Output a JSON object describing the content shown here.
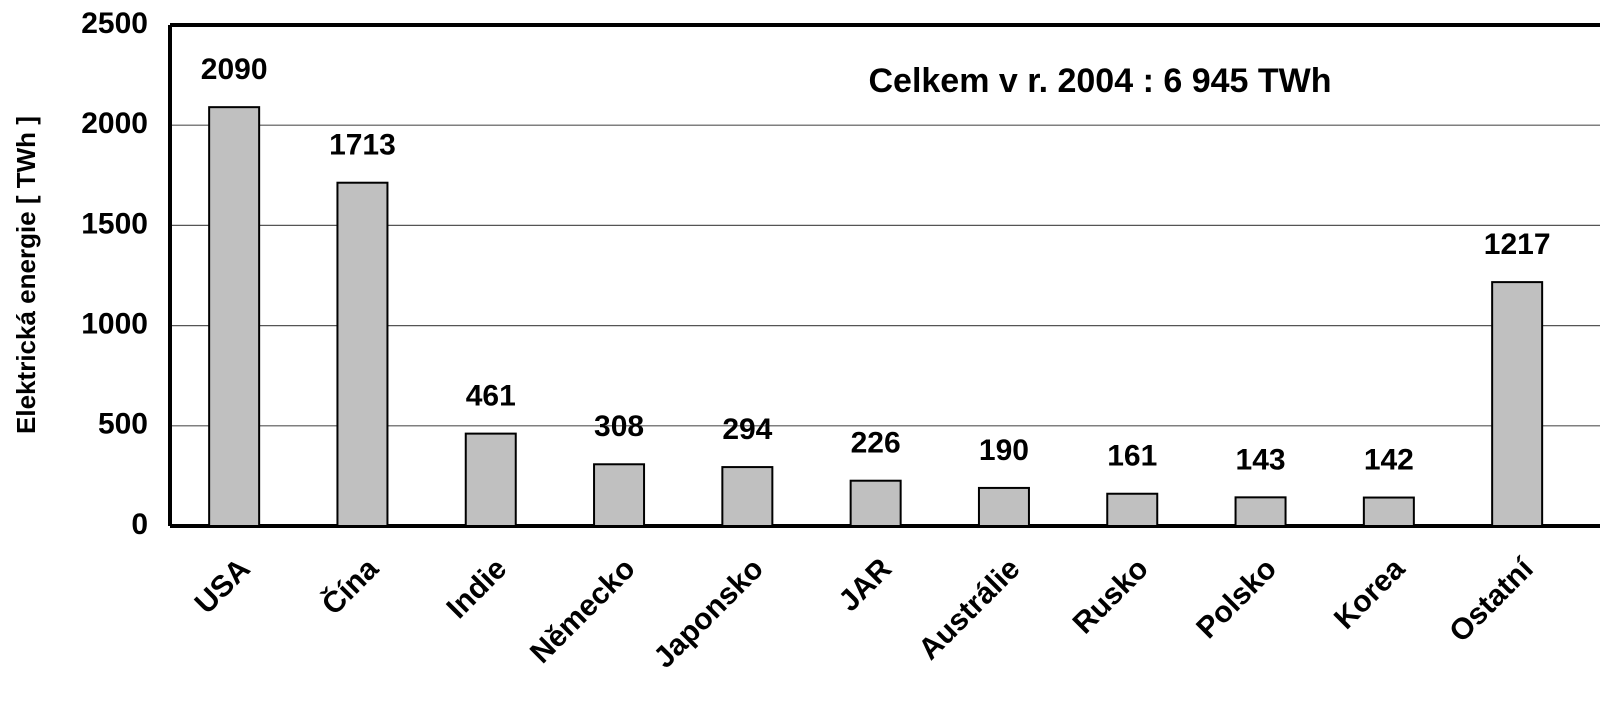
{
  "chart_data": {
    "type": "bar",
    "annotation": "Celkem v r. 2004 : 6 945 TWh",
    "y_label": "Elektrická energie [ TWh ]",
    "categories": [
      "USA",
      "Čína",
      "Indie",
      "Německo",
      "Japonsko",
      "JAR",
      "Austrálie",
      "Rusko",
      "Polsko",
      "Korea",
      "Ostatní"
    ],
    "values": [
      2090,
      1713,
      461,
      308,
      294,
      226,
      190,
      161,
      143,
      142,
      1217
    ],
    "color": "#c0c0c0",
    "ylim": [
      0,
      2500
    ],
    "yticks": [
      0,
      500,
      1000,
      1500,
      2000,
      2500
    ],
    "grid": true
  }
}
